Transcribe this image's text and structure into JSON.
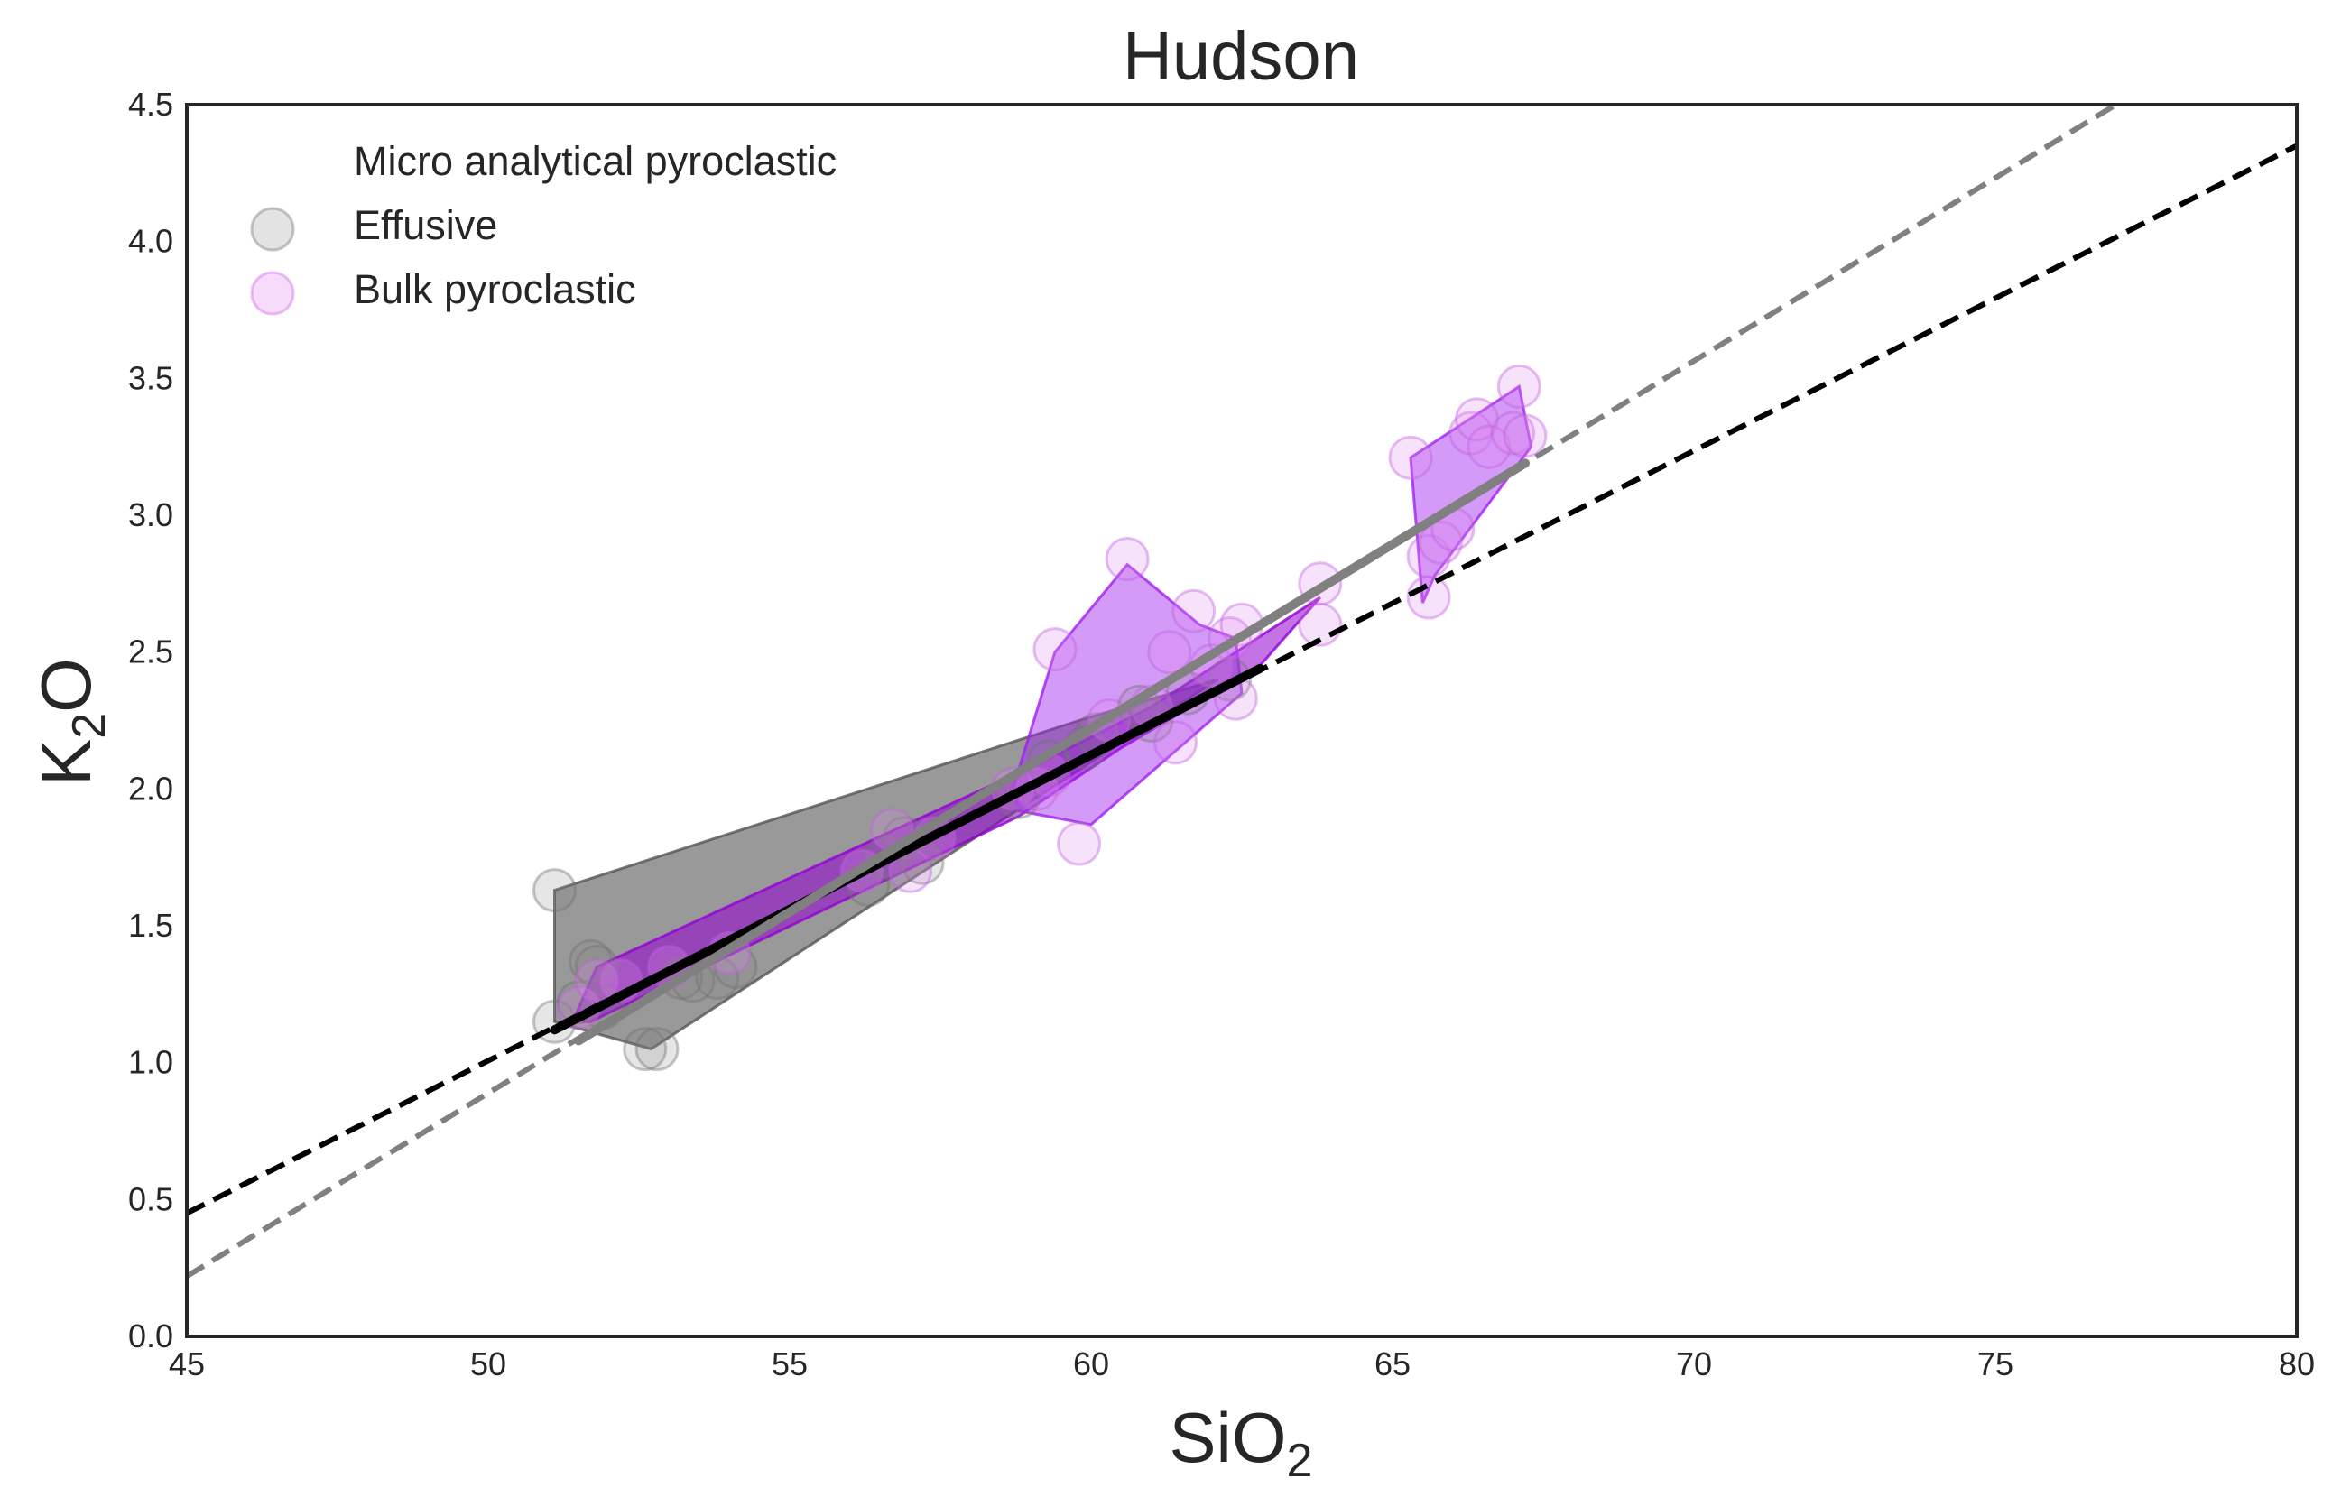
{
  "chart_data": {
    "type": "scatter",
    "title": "Hudson",
    "xlabel": "SiO",
    "xlabel_sub": "2",
    "ylabel": "K",
    "ylabel_sub": "2",
    "ylabel_tail": "O",
    "xlim": [
      45,
      80
    ],
    "ylim": [
      0,
      4.5
    ],
    "xticks": [
      "45",
      "50",
      "55",
      "60",
      "65",
      "70",
      "75",
      "80"
    ],
    "yticks": [
      "0.0",
      "0.5",
      "1.0",
      "1.5",
      "2.0",
      "2.5",
      "3.0",
      "3.5",
      "4.0",
      "4.5"
    ],
    "grid": false,
    "legend_position": "top-left",
    "legend": {
      "micro": "Micro analytical pyroclastic",
      "effusive": "Effusive",
      "bulk": "Bulk pyroclastic"
    },
    "colors": {
      "micro": "#9400d3",
      "effusive": "#808080",
      "bulk": "#e08af0",
      "hull_effusive": "#808080",
      "hull_bulk": "#a020f0",
      "trend_black": "#000000",
      "trend_gray": "#808080"
    },
    "series": [
      {
        "key": "effusive",
        "points": [
          [
            51.1,
            1.63
          ],
          [
            51.7,
            1.37
          ],
          [
            51.8,
            1.35
          ],
          [
            51.1,
            1.15
          ],
          [
            51.5,
            1.22
          ],
          [
            52.6,
            1.05
          ],
          [
            52.8,
            1.05
          ],
          [
            53.2,
            1.31
          ],
          [
            53.8,
            1.31
          ],
          [
            54.1,
            1.35
          ],
          [
            56.3,
            1.65
          ],
          [
            56.6,
            1.75
          ],
          [
            56.9,
            1.82
          ],
          [
            57.2,
            1.73
          ],
          [
            58.8,
            1.97
          ],
          [
            59.3,
            2.1
          ],
          [
            60.1,
            2.2
          ],
          [
            60.8,
            2.3
          ],
          [
            61.6,
            2.35
          ],
          [
            62.3,
            2.4
          ],
          [
            61.0,
            2.25
          ],
          [
            59.9,
            2.15
          ],
          [
            51.9,
            1.2
          ],
          [
            53.4,
            1.3
          ]
        ]
      },
      {
        "key": "bulk",
        "points": [
          [
            51.5,
            1.2
          ],
          [
            51.8,
            1.3
          ],
          [
            52.2,
            1.3
          ],
          [
            53.0,
            1.35
          ],
          [
            54.0,
            1.4
          ],
          [
            56.2,
            1.7
          ],
          [
            56.7,
            1.85
          ],
          [
            57.0,
            1.7
          ],
          [
            57.4,
            1.82
          ],
          [
            58.7,
            2.0
          ],
          [
            59.1,
            2.0
          ],
          [
            59.3,
            2.05
          ],
          [
            59.4,
            2.51
          ],
          [
            59.8,
            1.8
          ],
          [
            60.3,
            2.25
          ],
          [
            60.6,
            2.84
          ],
          [
            61.0,
            2.3
          ],
          [
            61.3,
            2.5
          ],
          [
            61.4,
            2.17
          ],
          [
            61.7,
            2.65
          ],
          [
            62.0,
            2.45
          ],
          [
            62.3,
            2.55
          ],
          [
            62.4,
            2.33
          ],
          [
            62.5,
            2.6
          ],
          [
            63.8,
            2.75
          ],
          [
            63.8,
            2.6
          ],
          [
            65.3,
            3.21
          ],
          [
            65.6,
            2.7
          ],
          [
            65.6,
            2.85
          ],
          [
            65.8,
            2.9
          ],
          [
            66.0,
            2.95
          ],
          [
            66.3,
            3.3
          ],
          [
            66.4,
            3.35
          ],
          [
            66.6,
            3.25
          ],
          [
            67.0,
            3.3
          ],
          [
            67.1,
            3.47
          ],
          [
            67.2,
            3.29
          ]
        ]
      }
    ],
    "hulls": [
      {
        "key": "effusive",
        "points": [
          [
            51.1,
            1.63
          ],
          [
            59.8,
            2.25
          ],
          [
            62.1,
            2.4
          ],
          [
            52.7,
            1.05
          ],
          [
            51.1,
            1.15
          ]
        ]
      },
      {
        "key": "micro",
        "points": [
          [
            51.4,
            1.15
          ],
          [
            51.8,
            1.35
          ],
          [
            59.2,
            2.1
          ],
          [
            61.0,
            2.3
          ],
          [
            63.8,
            2.7
          ],
          [
            62.8,
            2.45
          ],
          [
            60.5,
            2.15
          ],
          [
            58.8,
            1.9
          ],
          [
            51.7,
            1.15
          ]
        ]
      },
      {
        "key": "bulk",
        "points": [
          [
            58.7,
            2.0
          ],
          [
            59.4,
            2.5
          ],
          [
            60.6,
            2.82
          ],
          [
            61.8,
            2.6
          ],
          [
            62.4,
            2.55
          ],
          [
            62.5,
            2.35
          ],
          [
            60.0,
            1.87
          ],
          [
            58.8,
            1.92
          ]
        ]
      },
      {
        "key": "bulk",
        "points": [
          [
            65.3,
            3.21
          ],
          [
            67.1,
            3.47
          ],
          [
            67.3,
            3.25
          ],
          [
            65.7,
            2.78
          ],
          [
            65.5,
            2.68
          ]
        ]
      }
    ],
    "trend_lines": [
      {
        "style": "dashed",
        "color": "trend_black",
        "x": [
          45,
          80
        ],
        "y": [
          0.45,
          4.35
        ]
      },
      {
        "style": "dashed",
        "color": "trend_gray",
        "x": [
          45,
          77
        ],
        "y": [
          0.22,
          4.5
        ]
      },
      {
        "style": "solid",
        "color": "trend_black",
        "x": [
          51.1,
          62.8
        ],
        "y": [
          1.12,
          2.44
        ]
      },
      {
        "style": "solid",
        "color": "trend_gray",
        "x": [
          51.5,
          67.2
        ],
        "y": [
          1.08,
          3.19
        ]
      }
    ]
  }
}
